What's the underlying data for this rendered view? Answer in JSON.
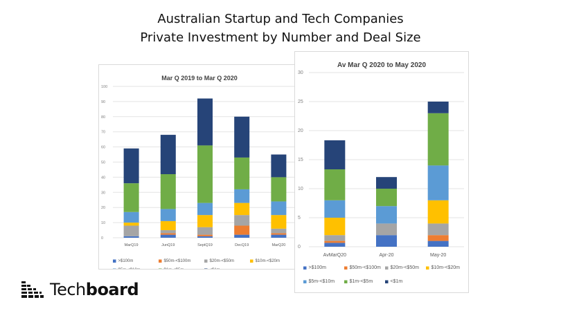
{
  "header": {
    "title_line1": "Australian Startup and Tech Companies",
    "title_line2": "Private Investment by Number and Deal Size"
  },
  "logo": {
    "part1": "Tech",
    "part2": "board"
  },
  "colors": {
    ">$100m": "#4472c4",
    "$50m-<$100m": "#ed7d31",
    "$20m-<$50m": "#a5a5a5",
    "$10m-<$20m": "#ffc000",
    "$5m-<$10m": "#5b9bd5",
    "$1m-<$5m": "#70ad47",
    "<$1m": "#264478"
  },
  "chart_data": [
    {
      "type": "bar",
      "stacked": true,
      "title": "Mar Q 2019 to Mar Q 2020",
      "xlabel": "",
      "ylabel": "",
      "ylim": [
        0,
        100
      ],
      "yticks": [
        0,
        10,
        20,
        30,
        40,
        50,
        60,
        70,
        80,
        90,
        100
      ],
      "grid": true,
      "legend": "bottom",
      "categories": [
        "MarQ19",
        "JunQ19",
        "SeptQ19",
        "DecQ19",
        "MarQ20"
      ],
      "series": [
        {
          "name": ">$100m",
          "values": [
            1,
            2,
            1,
            2,
            2
          ]
        },
        {
          "name": "$50m-<$100m",
          "values": [
            0,
            1,
            1,
            6,
            1
          ]
        },
        {
          "name": "$20m-<$50m",
          "values": [
            7,
            2,
            5,
            7,
            3
          ]
        },
        {
          "name": "$10m-<$20m",
          "values": [
            2,
            6,
            8,
            8,
            9
          ]
        },
        {
          "name": "$5m-<$10m",
          "values": [
            7,
            8,
            8,
            9,
            9
          ]
        },
        {
          "name": "$1m-<$5m",
          "values": [
            19,
            23,
            38,
            21,
            16
          ]
        },
        {
          "name": "<$1m",
          "values": [
            23,
            26,
            31,
            27,
            15
          ]
        }
      ]
    },
    {
      "type": "bar",
      "stacked": true,
      "title": "Av Mar Q 2020 to May 2020",
      "xlabel": "",
      "ylabel": "",
      "ylim": [
        0,
        30
      ],
      "yticks": [
        0,
        5,
        10,
        15,
        20,
        25,
        30
      ],
      "grid": true,
      "legend": "bottom",
      "categories": [
        "AvMarQ20",
        "Apr-20",
        "May-20"
      ],
      "series": [
        {
          "name": ">$100m",
          "values": [
            0.67,
            2,
            1
          ]
        },
        {
          "name": "$50m-<$100m",
          "values": [
            0.33,
            0,
            1
          ]
        },
        {
          "name": "$20m-<$50m",
          "values": [
            1,
            2,
            2
          ]
        },
        {
          "name": "$10m-<$20m",
          "values": [
            3,
            0,
            4
          ]
        },
        {
          "name": "$5m-<$10m",
          "values": [
            3,
            3,
            6
          ]
        },
        {
          "name": "$1m-<$5m",
          "values": [
            5.33,
            3,
            9
          ]
        },
        {
          "name": "<$1m",
          "values": [
            5,
            2,
            2
          ]
        }
      ]
    }
  ]
}
